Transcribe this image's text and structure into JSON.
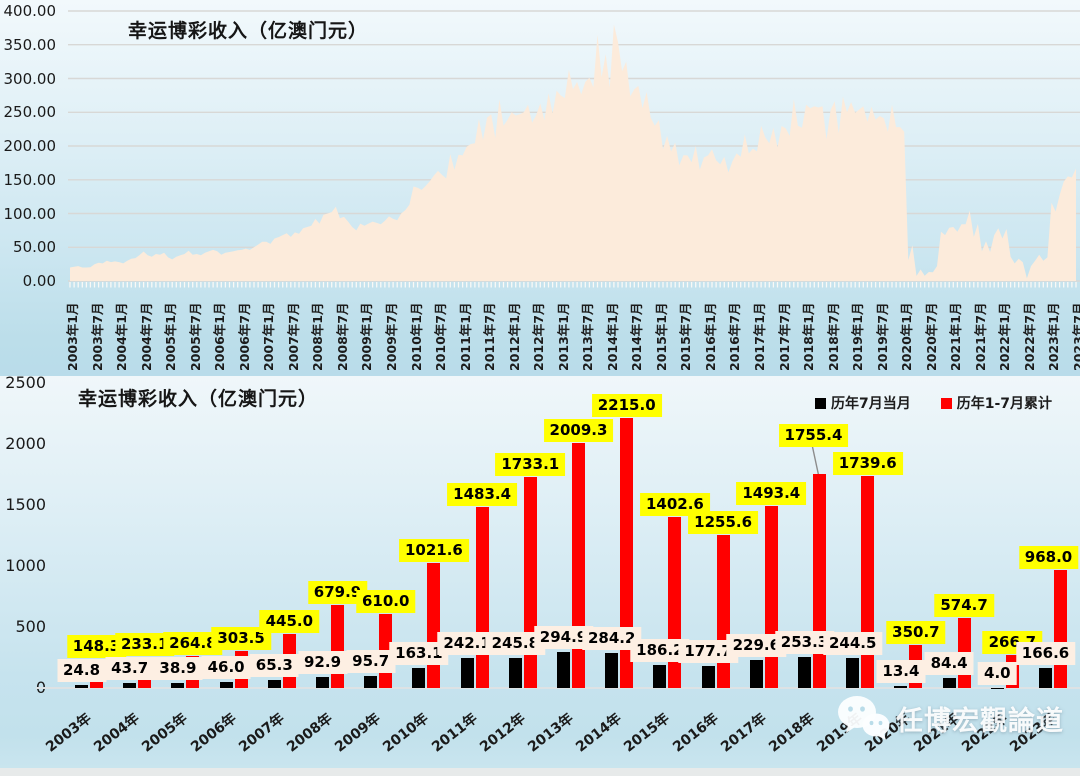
{
  "watermark": {
    "icon": "wechat-icon",
    "text": "任博宏觀論道"
  },
  "chart_data": [
    {
      "type": "area",
      "title": "幸运博彩收入（亿澳门元）",
      "xlabel": "",
      "ylabel": "",
      "ylim": [
        0,
        400
      ],
      "y_tick_labels": [
        "400.00",
        "350.00",
        "300.00",
        "250.00",
        "200.00",
        "150.00",
        "100.00",
        "50.00",
        "0.00"
      ],
      "grid": "horizontal",
      "fill_color": "#fcebdb",
      "x_range": [
        "2003年1月",
        "2023年7月"
      ],
      "x_tick_every_months": 6,
      "x_tick_labels": [
        "2003年1月",
        "2003年7月",
        "2004年1月",
        "2004年7月",
        "2005年1月",
        "2005年7月",
        "2006年1月",
        "2006年7月",
        "2007年1月",
        "2007年7月",
        "2008年1月",
        "2008年7月",
        "2009年1月",
        "2009年7月",
        "2010年1月",
        "2010年7月",
        "2011年1月",
        "2011年7月",
        "2012年1月",
        "2012年7月",
        "2013年1月",
        "2013年7月",
        "2014年1月",
        "2014年7月",
        "2015年1月",
        "2015年7月",
        "2016年1月",
        "2016年7月",
        "2017年1月",
        "2017年7月",
        "2018年1月",
        "2018年7月",
        "2019年1月",
        "2019年7月",
        "2020年1月",
        "2020年7月",
        "2021年1月",
        "2021年7月",
        "2022年1月",
        "2022年7月",
        "2023年1月",
        "2023年7月"
      ],
      "monthly_values": [
        20,
        21,
        22,
        20,
        20,
        20.5,
        24.8,
        27,
        26,
        30,
        28,
        29,
        28,
        26,
        30,
        33,
        34,
        38.4,
        43.7,
        38,
        36,
        40,
        39,
        42,
        35,
        32,
        36,
        38,
        40,
        44.9,
        38.9,
        40,
        38,
        42,
        44,
        46,
        44,
        39,
        42,
        43,
        44,
        45.5,
        46,
        48,
        46,
        50,
        54,
        58,
        58,
        55,
        63,
        65,
        68,
        70.7,
        65.3,
        72,
        70,
        78,
        80,
        82,
        92,
        85,
        98,
        100,
        102,
        110,
        92.9,
        95,
        88,
        80,
        75,
        85,
        82,
        85,
        88,
        86,
        84,
        89.3,
        95.7,
        92,
        90,
        100,
        105,
        113,
        140,
        138,
        135,
        141,
        148,
        156.5,
        163.1,
        157,
        152,
        188,
        165,
        187,
        186,
        199,
        203,
        204,
        240,
        209.3,
        242.1,
        247,
        212,
        269,
        230,
        239,
        250,
        245,
        247,
        250,
        261,
        234.3,
        245.8,
        263,
        238,
        278,
        248,
        282,
        275,
        271,
        313,
        284,
        295,
        276.4,
        294.9,
        301,
        287,
        365,
        302,
        336,
        287,
        380,
        354,
        311,
        325,
        273.8,
        284.2,
        289,
        256,
        280,
        242,
        230,
        238,
        195,
        215,
        192,
        205,
        171.4,
        186.2,
        186,
        176,
        200,
        165,
        183,
        186,
        195,
        179,
        173,
        184,
        160.9,
        177.7,
        189,
        184,
        217,
        189,
        196,
        192,
        230,
        213,
        204,
        227,
        197.8,
        229.6,
        226,
        215,
        269,
        230,
        227,
        261,
        256,
        259,
        257,
        259,
        210.1,
        253.3,
        266,
        219,
        273,
        250,
        265,
        249,
        254,
        259,
        236,
        258,
        239.1,
        244.5,
        241,
        221,
        261,
        228,
        228,
        221,
        31,
        53,
        7.5,
        17,
        7.8,
        13.4,
        13,
        22,
        73,
        68,
        79,
        80,
        73,
        84,
        84,
        104,
        65.3,
        84.4,
        44,
        59,
        43,
        68,
        78,
        63,
        77,
        36,
        26,
        33,
        27.7,
        4,
        22,
        30,
        39,
        30,
        35,
        116,
        103,
        127,
        147,
        155,
        153.4,
        166.6
      ]
    },
    {
      "type": "bar",
      "title": "幸运博彩收入（亿澳门元）",
      "ylim": [
        0,
        2500
      ],
      "y_tick_labels": [
        "2500",
        "2000",
        "1500",
        "1000",
        "500",
        "0"
      ],
      "grid": "none",
      "legend_position": "top-right",
      "callout_category": "2018年",
      "categories": [
        "2003年",
        "2004年",
        "2005年",
        "2006年",
        "2007年",
        "2008年",
        "2009年",
        "2010年",
        "2011年",
        "2012年",
        "2013年",
        "2014年",
        "2015年",
        "2016年",
        "2017年",
        "2018年",
        "2019年",
        "2020年",
        "2021年",
        "2022年",
        "2023年"
      ],
      "series": [
        {
          "name": "历年7月当月",
          "color": "#000000",
          "label_box_color": "#fdefe3",
          "values": [
            24.8,
            43.7,
            38.9,
            46.0,
            65.3,
            92.9,
            95.7,
            163.1,
            242.1,
            245.8,
            294.9,
            284.2,
            186.2,
            177.7,
            229.6,
            253.3,
            244.5,
            13.4,
            84.4,
            4.0,
            166.6
          ]
        },
        {
          "name": "历年1-7月累计",
          "color": "#ff0000",
          "label_box_color": "#ffff00",
          "values": [
            148.3,
            233.1,
            264.8,
            303.5,
            445.0,
            679.9,
            610.0,
            1021.6,
            1483.4,
            1733.1,
            2009.3,
            2215.0,
            1402.6,
            1255.6,
            1493.4,
            1755.4,
            1739.6,
            350.7,
            574.7,
            266.7,
            968.0
          ]
        }
      ]
    }
  ]
}
